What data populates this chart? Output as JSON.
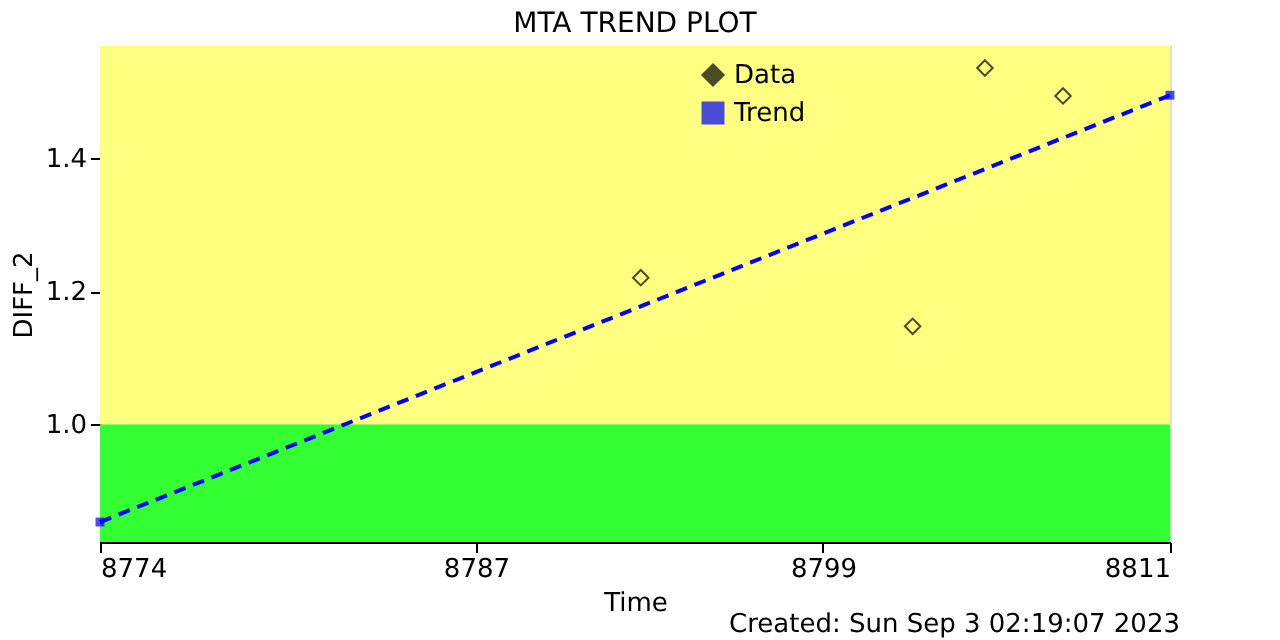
{
  "chart_data": {
    "type": "scatter",
    "title": "MTA TREND PLOT",
    "xlabel": "Time",
    "ylabel": "DIFF_2",
    "xlim": [
      8774,
      8811
    ],
    "xticks": [
      8774,
      8787,
      8799,
      8811
    ],
    "ylim": [
      0.823,
      1.568
    ],
    "yticks": [
      {
        "value": 1.0,
        "label": "1.0"
      },
      1.2,
      1.4
    ],
    "series": [
      {
        "name": "Data",
        "marker": "diamond",
        "color": "#000000",
        "x": [
          8792.7,
          8802.1,
          8804.6,
          8807.3
        ],
        "values": [
          1.22,
          1.147,
          1.535,
          1.493
        ]
      },
      {
        "name": "Trend",
        "type": "line",
        "marker": "square",
        "line_style": "dashed",
        "color": "#0000ff",
        "x": [
          8774,
          8811
        ],
        "values": [
          0.853,
          1.494
        ]
      }
    ],
    "bands": [
      {
        "axis": "y",
        "from": 0.823,
        "to": 1.0,
        "color": "#33ff33"
      },
      {
        "axis": "y",
        "from": 1.0,
        "to": 1.568,
        "color": "#ffff80"
      }
    ],
    "legend": "top right",
    "grid": false,
    "annotations": [
      "Created: Sun Sep  3 02:19:07 2023"
    ]
  }
}
